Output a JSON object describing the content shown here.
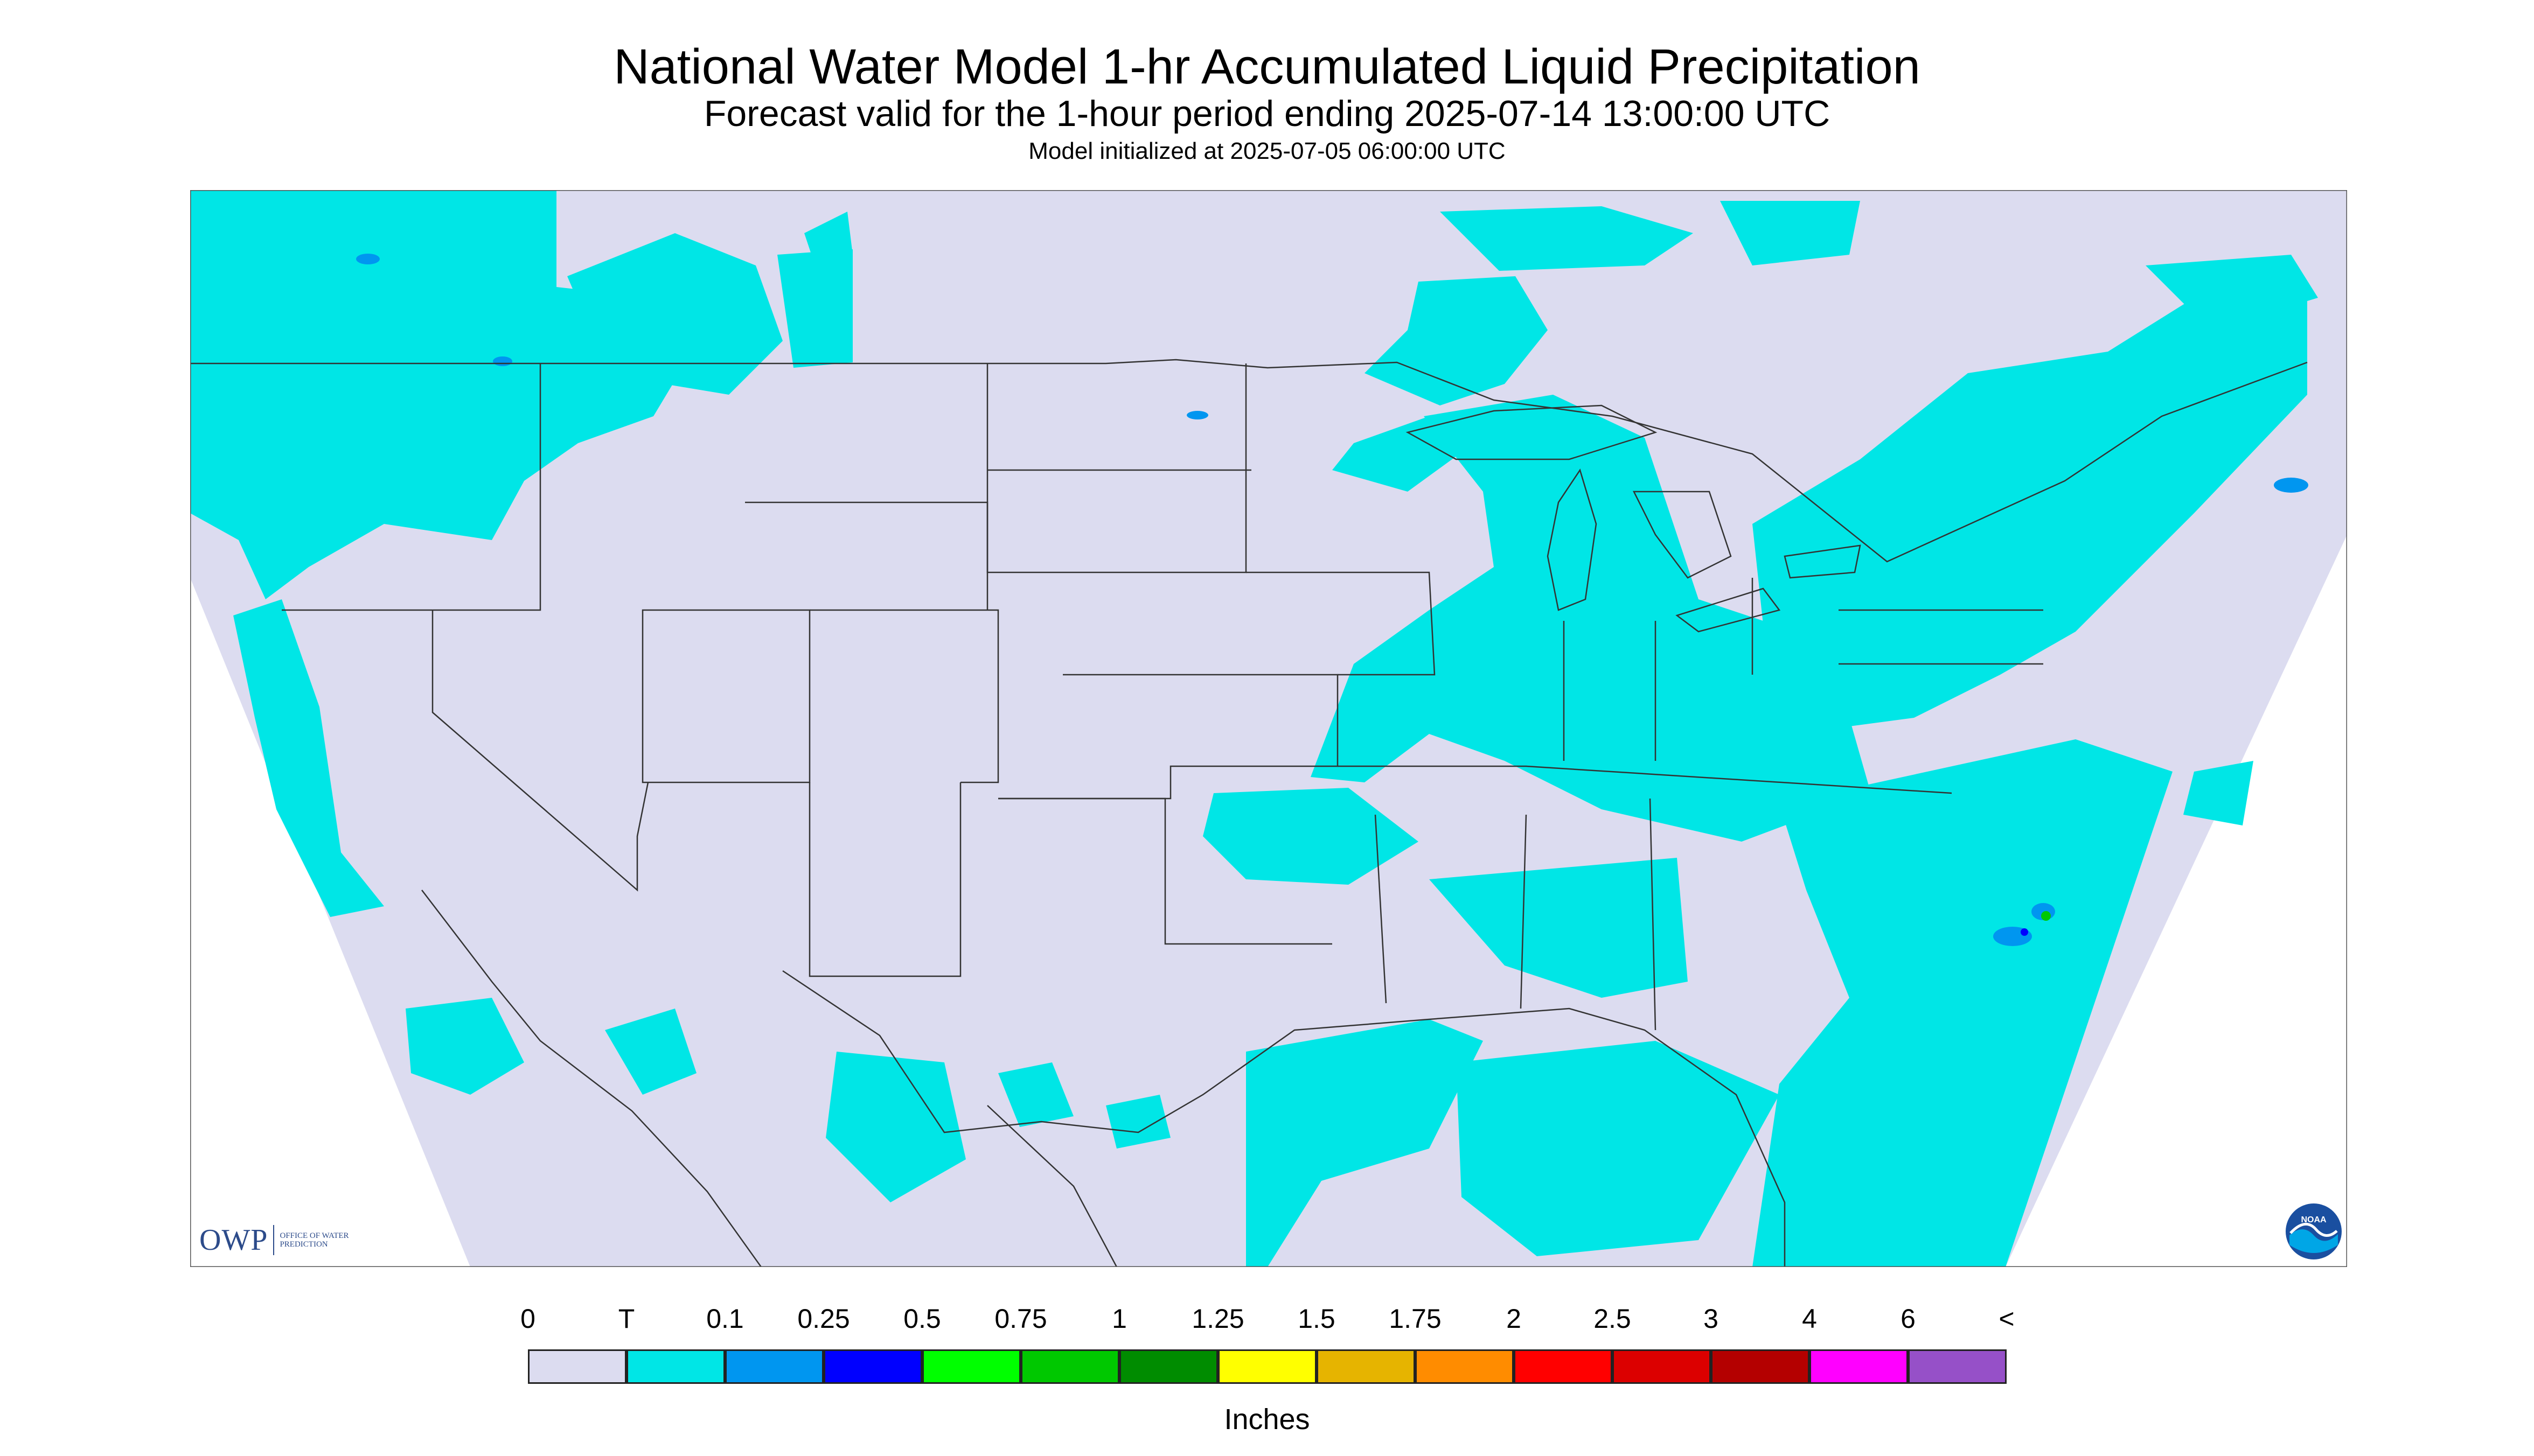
{
  "title": "National Water Model 1-hr Accumulated Liquid Precipitation",
  "subtitle": "Forecast valid for the 1-hour period ending 2025-07-14 13:00:00 UTC",
  "init_text": "Model initialized at 2025-07-05 06:00:00 UTC",
  "legend": {
    "labels": [
      "0",
      "T",
      "0.1",
      "0.25",
      "0.5",
      "0.75",
      "1",
      "1.25",
      "1.5",
      "1.75",
      "2",
      "2.5",
      "3",
      "4",
      "6",
      "<"
    ],
    "colors": [
      "#dcdcf0",
      "#00e6e6",
      "#0096f0",
      "#0000ff",
      "#00ff00",
      "#00c800",
      "#008c00",
      "#ffff00",
      "#e6b400",
      "#ff8c00",
      "#ff0000",
      "#dc0000",
      "#b40000",
      "#ff00ff",
      "#9650c8"
    ],
    "units": "Inches"
  },
  "logos": {
    "owp_text": "OWP",
    "owp_small": "OFFICE OF WATER PREDICTION",
    "noaa_text": "NOAA"
  },
  "map": {
    "background_color": "#dcdcf0",
    "trace_color": "#00e6e6",
    "light_color": "#0096f0",
    "boundary_color": "#333333"
  }
}
